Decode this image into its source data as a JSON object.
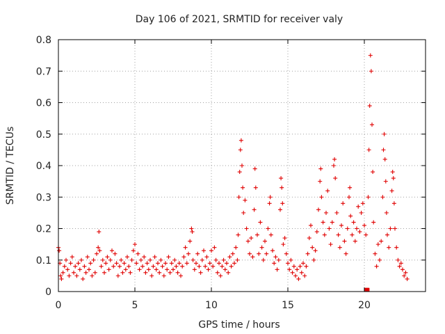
{
  "chart_data": {
    "type": "scatter",
    "title": "Day 106 of 2021, SRMTID for receiver valy",
    "xlabel": "GPS time / hours",
    "ylabel": "SRMTID / TECUs",
    "xlim": [
      0,
      24
    ],
    "ylim": [
      0,
      0.8
    ],
    "x_ticks": [
      0,
      5,
      10,
      15,
      20
    ],
    "x_tick_labels": [
      "0",
      "5",
      "10",
      "15",
      "20"
    ],
    "y_ticks": [
      0,
      0.1,
      0.2,
      0.3,
      0.4,
      0.5,
      0.6,
      0.7,
      0.8
    ],
    "y_tick_labels": [
      "0",
      "0.1",
      "0.2",
      "0.3",
      "0.4",
      "0.5",
      "0.6",
      "0.7",
      "0.8"
    ],
    "grid": true,
    "marker": "+",
    "color": "#e00000",
    "series": [
      {
        "name": "SRMTID",
        "points": [
          [
            0.0,
            0.14
          ],
          [
            0.05,
            0.13
          ],
          [
            0.1,
            0.09
          ],
          [
            0.15,
            0.05
          ],
          [
            0.2,
            0.04
          ],
          [
            0.3,
            0.06
          ],
          [
            0.4,
            0.08
          ],
          [
            0.5,
            0.1
          ],
          [
            0.6,
            0.07
          ],
          [
            0.7,
            0.05
          ],
          [
            0.8,
            0.09
          ],
          [
            0.9,
            0.11
          ],
          [
            1.0,
            0.06
          ],
          [
            1.1,
            0.08
          ],
          [
            1.2,
            0.05
          ],
          [
            1.3,
            0.09
          ],
          [
            1.4,
            0.07
          ],
          [
            1.5,
            0.1
          ],
          [
            1.6,
            0.04
          ],
          [
            1.7,
            0.08
          ],
          [
            1.8,
            0.06
          ],
          [
            1.9,
            0.11
          ],
          [
            2.0,
            0.07
          ],
          [
            2.1,
            0.09
          ],
          [
            2.2,
            0.05
          ],
          [
            2.3,
            0.1
          ],
          [
            2.4,
            0.06
          ],
          [
            2.5,
            0.12
          ],
          [
            2.6,
            0.14
          ],
          [
            2.65,
            0.19
          ],
          [
            2.7,
            0.13
          ],
          [
            2.8,
            0.08
          ],
          [
            2.9,
            0.1
          ],
          [
            3.0,
            0.06
          ],
          [
            3.1,
            0.09
          ],
          [
            3.2,
            0.11
          ],
          [
            3.3,
            0.07
          ],
          [
            3.4,
            0.1
          ],
          [
            3.5,
            0.13
          ],
          [
            3.6,
            0.08
          ],
          [
            3.7,
            0.12
          ],
          [
            3.8,
            0.09
          ],
          [
            3.9,
            0.05
          ],
          [
            4.0,
            0.08
          ],
          [
            4.1,
            0.1
          ],
          [
            4.2,
            0.06
          ],
          [
            4.3,
            0.09
          ],
          [
            4.4,
            0.07
          ],
          [
            4.5,
            0.11
          ],
          [
            4.6,
            0.08
          ],
          [
            4.7,
            0.06
          ],
          [
            4.8,
            0.1
          ],
          [
            4.9,
            0.13
          ],
          [
            5.0,
            0.15
          ],
          [
            5.1,
            0.09
          ],
          [
            5.2,
            0.12
          ],
          [
            5.3,
            0.07
          ],
          [
            5.4,
            0.1
          ],
          [
            5.5,
            0.08
          ],
          [
            5.6,
            0.11
          ],
          [
            5.7,
            0.06
          ],
          [
            5.8,
            0.09
          ],
          [
            5.9,
            0.07
          ],
          [
            6.0,
            0.1
          ],
          [
            6.1,
            0.05
          ],
          [
            6.2,
            0.08
          ],
          [
            6.3,
            0.11
          ],
          [
            6.4,
            0.07
          ],
          [
            6.5,
            0.09
          ],
          [
            6.6,
            0.06
          ],
          [
            6.7,
            0.1
          ],
          [
            6.8,
            0.08
          ],
          [
            6.9,
            0.05
          ],
          [
            7.0,
            0.09
          ],
          [
            7.1,
            0.07
          ],
          [
            7.2,
            0.11
          ],
          [
            7.3,
            0.06
          ],
          [
            7.4,
            0.09
          ],
          [
            7.5,
            0.07
          ],
          [
            7.6,
            0.1
          ],
          [
            7.7,
            0.08
          ],
          [
            7.8,
            0.06
          ],
          [
            7.9,
            0.09
          ],
          [
            8.0,
            0.05
          ],
          [
            8.1,
            0.08
          ],
          [
            8.2,
            0.11
          ],
          [
            8.3,
            0.14
          ],
          [
            8.4,
            0.09
          ],
          [
            8.5,
            0.12
          ],
          [
            8.6,
            0.16
          ],
          [
            8.7,
            0.2
          ],
          [
            8.75,
            0.19
          ],
          [
            8.8,
            0.1
          ],
          [
            8.9,
            0.07
          ],
          [
            9.0,
            0.09
          ],
          [
            9.1,
            0.12
          ],
          [
            9.2,
            0.08
          ],
          [
            9.3,
            0.06
          ],
          [
            9.4,
            0.1
          ],
          [
            9.5,
            0.13
          ],
          [
            9.6,
            0.08
          ],
          [
            9.7,
            0.11
          ],
          [
            9.8,
            0.07
          ],
          [
            9.9,
            0.09
          ],
          [
            10.0,
            0.13
          ],
          [
            10.1,
            0.08
          ],
          [
            10.2,
            0.14
          ],
          [
            10.3,
            0.1
          ],
          [
            10.4,
            0.06
          ],
          [
            10.5,
            0.09
          ],
          [
            10.6,
            0.05
          ],
          [
            10.7,
            0.08
          ],
          [
            10.8,
            0.1
          ],
          [
            10.9,
            0.07
          ],
          [
            11.0,
            0.09
          ],
          [
            11.1,
            0.06
          ],
          [
            11.2,
            0.11
          ],
          [
            11.3,
            0.08
          ],
          [
            11.4,
            0.12
          ],
          [
            11.5,
            0.09
          ],
          [
            11.6,
            0.14
          ],
          [
            11.7,
            0.1
          ],
          [
            11.75,
            0.18
          ],
          [
            11.8,
            0.3
          ],
          [
            11.85,
            0.38
          ],
          [
            11.9,
            0.45
          ],
          [
            11.95,
            0.48
          ],
          [
            12.0,
            0.4
          ],
          [
            12.05,
            0.33
          ],
          [
            12.1,
            0.25
          ],
          [
            12.2,
            0.29
          ],
          [
            12.3,
            0.2
          ],
          [
            12.4,
            0.16
          ],
          [
            12.5,
            0.12
          ],
          [
            12.6,
            0.17
          ],
          [
            12.7,
            0.11
          ],
          [
            12.8,
            0.26
          ],
          [
            12.85,
            0.39
          ],
          [
            12.9,
            0.33
          ],
          [
            13.0,
            0.18
          ],
          [
            13.1,
            0.12
          ],
          [
            13.2,
            0.22
          ],
          [
            13.3,
            0.14
          ],
          [
            13.4,
            0.1
          ],
          [
            13.5,
            0.16
          ],
          [
            13.6,
            0.12
          ],
          [
            13.7,
            0.2
          ],
          [
            13.8,
            0.28
          ],
          [
            13.85,
            0.3
          ],
          [
            13.9,
            0.18
          ],
          [
            14.0,
            0.13
          ],
          [
            14.1,
            0.09
          ],
          [
            14.2,
            0.11
          ],
          [
            14.3,
            0.07
          ],
          [
            14.4,
            0.1
          ],
          [
            14.5,
            0.26
          ],
          [
            14.55,
            0.36
          ],
          [
            14.6,
            0.33
          ],
          [
            14.65,
            0.28
          ],
          [
            14.7,
            0.15
          ],
          [
            14.8,
            0.17
          ],
          [
            14.9,
            0.12
          ],
          [
            15.0,
            0.09
          ],
          [
            15.1,
            0.07
          ],
          [
            15.2,
            0.1
          ],
          [
            15.3,
            0.06
          ],
          [
            15.4,
            0.08
          ],
          [
            15.5,
            0.05
          ],
          [
            15.6,
            0.07
          ],
          [
            15.7,
            0.04
          ],
          [
            15.8,
            0.08
          ],
          [
            15.9,
            0.06
          ],
          [
            16.0,
            0.09
          ],
          [
            16.1,
            0.05
          ],
          [
            16.2,
            0.08
          ],
          [
            16.3,
            0.12
          ],
          [
            16.4,
            0.17
          ],
          [
            16.5,
            0.21
          ],
          [
            16.6,
            0.14
          ],
          [
            16.7,
            0.1
          ],
          [
            16.8,
            0.13
          ],
          [
            16.9,
            0.19
          ],
          [
            17.0,
            0.26
          ],
          [
            17.1,
            0.35
          ],
          [
            17.15,
            0.39
          ],
          [
            17.2,
            0.3
          ],
          [
            17.3,
            0.22
          ],
          [
            17.4,
            0.18
          ],
          [
            17.5,
            0.25
          ],
          [
            17.6,
            0.32
          ],
          [
            17.7,
            0.2
          ],
          [
            17.8,
            0.15
          ],
          [
            17.9,
            0.22
          ],
          [
            18.0,
            0.4
          ],
          [
            18.05,
            0.42
          ],
          [
            18.1,
            0.36
          ],
          [
            18.2,
            0.25
          ],
          [
            18.3,
            0.18
          ],
          [
            18.4,
            0.14
          ],
          [
            18.5,
            0.21
          ],
          [
            18.6,
            0.28
          ],
          [
            18.7,
            0.16
          ],
          [
            18.8,
            0.12
          ],
          [
            18.9,
            0.2
          ],
          [
            19.0,
            0.3
          ],
          [
            19.05,
            0.33
          ],
          [
            19.1,
            0.24
          ],
          [
            19.2,
            0.18
          ],
          [
            19.3,
            0.22
          ],
          [
            19.4,
            0.16
          ],
          [
            19.5,
            0.2
          ],
          [
            19.6,
            0.27
          ],
          [
            19.7,
            0.19
          ],
          [
            19.8,
            0.25
          ],
          [
            19.9,
            0.28
          ],
          [
            20.0,
            0.21
          ],
          [
            20.1,
            0.18
          ],
          [
            20.15,
            0.005
          ],
          [
            20.2,
            0.005
          ],
          [
            20.25,
            0.3
          ],
          [
            20.3,
            0.45
          ],
          [
            20.35,
            0.59
          ],
          [
            20.4,
            0.75
          ],
          [
            20.45,
            0.7
          ],
          [
            20.5,
            0.53
          ],
          [
            20.55,
            0.38
          ],
          [
            20.6,
            0.22
          ],
          [
            20.7,
            0.12
          ],
          [
            20.8,
            0.08
          ],
          [
            20.9,
            0.15
          ],
          [
            21.0,
            0.1
          ],
          [
            21.1,
            0.16
          ],
          [
            21.2,
            0.3
          ],
          [
            21.25,
            0.45
          ],
          [
            21.3,
            0.5
          ],
          [
            21.35,
            0.42
          ],
          [
            21.4,
            0.35
          ],
          [
            21.45,
            0.25
          ],
          [
            21.5,
            0.18
          ],
          [
            21.6,
            0.14
          ],
          [
            21.7,
            0.2
          ],
          [
            21.8,
            0.32
          ],
          [
            21.85,
            0.38
          ],
          [
            21.9,
            0.36
          ],
          [
            21.95,
            0.28
          ],
          [
            22.0,
            0.2
          ],
          [
            22.1,
            0.14
          ],
          [
            22.2,
            0.1
          ],
          [
            22.3,
            0.08
          ],
          [
            22.4,
            0.09
          ],
          [
            22.5,
            0.07
          ],
          [
            22.6,
            0.05
          ],
          [
            22.7,
            0.06
          ],
          [
            22.8,
            0.04
          ]
        ]
      }
    ]
  }
}
